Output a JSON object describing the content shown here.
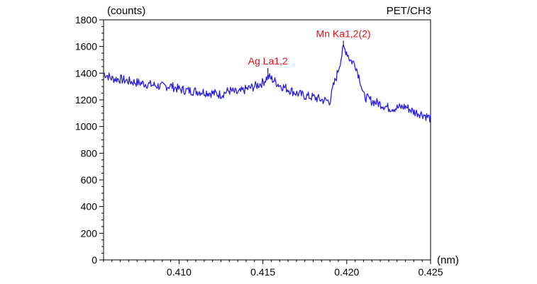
{
  "chart_data": {
    "type": "line",
    "title": "PET/CH3",
    "ylabel": "(counts)",
    "xlabel": "(nm)",
    "xlim": [
      0.4055,
      0.425
    ],
    "ylim": [
      0,
      1800
    ],
    "x_ticks": [
      0.41,
      0.415,
      0.42,
      0.425
    ],
    "x_tick_labels": [
      "0.410",
      "0.415",
      "0.420",
      "0.425"
    ],
    "y_ticks": [
      0,
      200,
      400,
      600,
      800,
      1000,
      1200,
      1400,
      1600,
      1800
    ],
    "y_tick_labels": [
      "0",
      "200",
      "400",
      "600",
      "800",
      "1000",
      "1200",
      "1400",
      "1600",
      "1800"
    ],
    "grid": false,
    "line_color": "#2b1fe0",
    "annotation_color": "#e0101a",
    "annotations": [
      {
        "text": "Ag La1,2",
        "x": 0.4153,
        "y": 1375
      },
      {
        "text": "Mn Ka1,2(2)",
        "x": 0.4198,
        "y": 1580
      }
    ],
    "series": [
      {
        "x": [
          0.4055,
          0.406,
          0.4065,
          0.407,
          0.4075,
          0.408,
          0.4085,
          0.409,
          0.4095,
          0.41,
          0.4105,
          0.411,
          0.4115,
          0.412,
          0.4125,
          0.413,
          0.4135,
          0.414,
          0.4145,
          0.415,
          0.4153,
          0.4155,
          0.416,
          0.4165,
          0.417,
          0.4175,
          0.418,
          0.4185,
          0.419,
          0.4192,
          0.4194,
          0.4196,
          0.4198,
          0.42,
          0.4202,
          0.4205,
          0.4208,
          0.421,
          0.4215,
          0.422,
          0.4225,
          0.423,
          0.4235,
          0.424,
          0.4245,
          0.425
        ],
        "values": [
          1400,
          1360,
          1355,
          1340,
          1330,
          1320,
          1310,
          1300,
          1305,
          1280,
          1270,
          1265,
          1260,
          1250,
          1240,
          1270,
          1250,
          1280,
          1300,
          1330,
          1375,
          1360,
          1310,
          1280,
          1250,
          1230,
          1220,
          1200,
          1190,
          1300,
          1380,
          1480,
          1590,
          1560,
          1500,
          1470,
          1350,
          1230,
          1190,
          1170,
          1140,
          1140,
          1150,
          1110,
          1095,
          1060
        ]
      }
    ]
  }
}
